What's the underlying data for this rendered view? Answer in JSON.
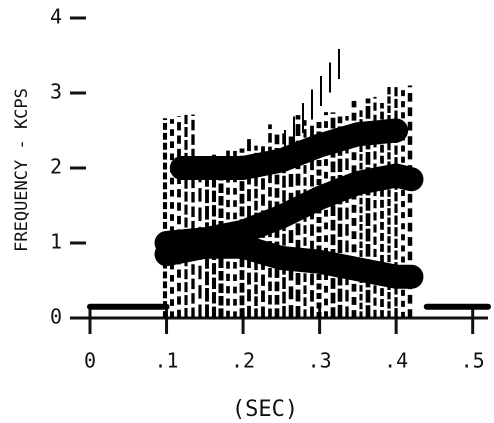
{
  "chart_data": {
    "type": "spectrogram",
    "ylabel": "FREQUENCY - KCPS",
    "xlabel": "(SEC)",
    "xlim": [
      0,
      0.52
    ],
    "ylim": [
      0,
      4
    ],
    "xticks": [
      0,
      {
        "value": 0.1,
        "label": ".1"
      },
      {
        "value": 0.2,
        "label": ".2"
      },
      {
        "value": 0.3,
        "label": ".3"
      },
      {
        "value": 0.4,
        "label": ".4"
      },
      {
        "value": 0.5,
        "label": ".5"
      }
    ],
    "yticks": [
      0,
      1,
      2,
      3,
      4
    ],
    "color": "#000",
    "formants": [
      {
        "x": [
          0,
          0.1
        ],
        "y": [
          0.15,
          0.15
        ]
      },
      {
        "x": [
          0.44,
          0.52
        ],
        "y": [
          0.15,
          0.15
        ]
      },
      {
        "x": [
          0.1,
          0.15,
          0.2,
          0.25,
          0.3,
          0.35,
          0.4,
          0.42
        ],
        "y": [
          0.85,
          0.95,
          0.95,
          0.8,
          0.75,
          0.65,
          0.55,
          0.55
        ]
      },
      {
        "x": [
          0.1,
          0.15,
          0.2,
          0.25,
          0.3,
          0.35,
          0.4,
          0.42
        ],
        "y": [
          1.0,
          1.05,
          1.15,
          1.35,
          1.6,
          1.8,
          1.9,
          1.85
        ]
      },
      {
        "x": [
          0.12,
          0.15,
          0.2,
          0.25,
          0.3,
          0.35,
          0.4
        ],
        "y": [
          2.0,
          2.0,
          2.0,
          2.1,
          2.3,
          2.45,
          2.5
        ]
      }
    ]
  }
}
